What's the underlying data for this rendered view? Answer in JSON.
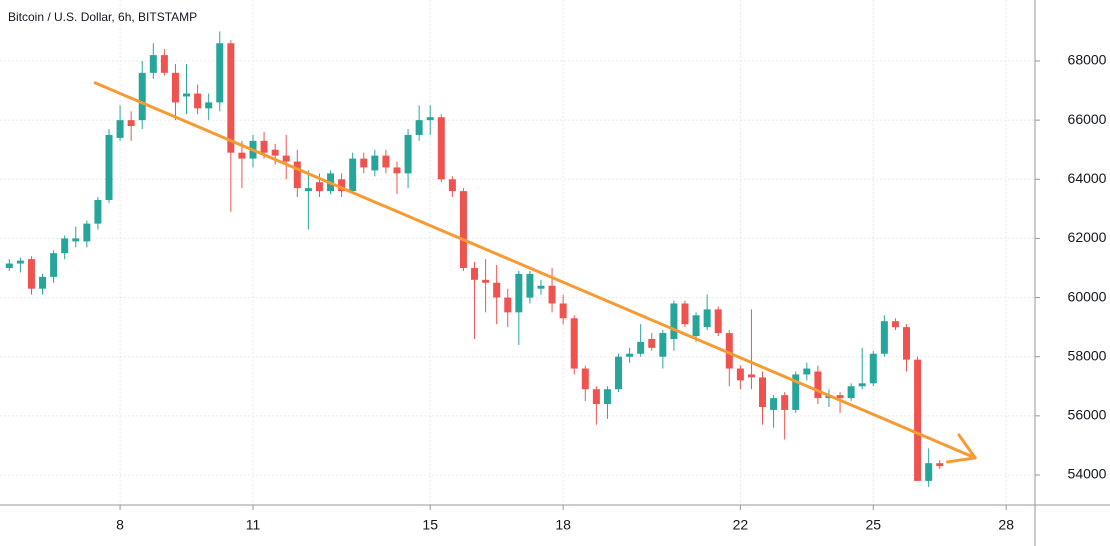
{
  "chart_data": {
    "type": "candlestick",
    "title": "Bitcoin / U.S. Dollar, 6h, BITSTAMP",
    "up_color": "#26a69a",
    "down_color": "#ef5350",
    "grid": true,
    "xlim": [
      5.29,
      28.65
    ],
    "xticks": [
      8,
      11,
      15,
      18,
      22,
      25,
      28
    ],
    "ylim": [
      52985,
      70063
    ],
    "yticks": [
      54000,
      56000,
      58000,
      60000,
      62000,
      64000,
      66000,
      68000
    ],
    "x": [
      5.5,
      5.75,
      6,
      6.25,
      6.5,
      6.75,
      7,
      7.25,
      7.5,
      7.75,
      8,
      8.25,
      8.5,
      8.75,
      9,
      9.25,
      9.5,
      9.75,
      10,
      10.25,
      10.5,
      10.75,
      11,
      11.25,
      11.5,
      11.75,
      12,
      12.25,
      12.5,
      12.75,
      13,
      13.25,
      13.5,
      13.75,
      14,
      14.25,
      14.5,
      14.75,
      15,
      15.25,
      15.5,
      15.75,
      16,
      16.25,
      16.5,
      16.75,
      17,
      17.25,
      17.5,
      17.75,
      18,
      18.25,
      18.5,
      18.75,
      19,
      19.25,
      19.5,
      19.75,
      20,
      20.25,
      20.5,
      20.75,
      21,
      21.25,
      21.5,
      21.75,
      22,
      22.25,
      22.5,
      22.75,
      23,
      23.25,
      23.5,
      23.75,
      24,
      24.25,
      24.5,
      24.75,
      25,
      25.25,
      25.5,
      25.75,
      26,
      26.25,
      26.5
    ],
    "open": [
      61000,
      61150,
      61300,
      60300,
      60700,
      61500,
      61900,
      61900,
      62500,
      63300,
      65400,
      66000,
      66000,
      67600,
      68200,
      67600,
      66800,
      66900,
      66400,
      66600,
      68600,
      64900,
      64700,
      65300,
      65000,
      64800,
      64600,
      63600,
      63900,
      63600,
      64000,
      63600,
      64700,
      64300,
      64800,
      64400,
      64200,
      65500,
      66000,
      66100,
      64000,
      63600,
      61000,
      60600,
      60500,
      60000,
      59500,
      60000,
      60300,
      60400,
      59800,
      59300,
      57600,
      56900,
      56400,
      56900,
      58000,
      58100,
      58600,
      58000,
      58600,
      59800,
      58700,
      59000,
      59600,
      58800,
      57600,
      57400,
      57300,
      56200,
      56700,
      56200,
      57400,
      57500,
      56600,
      56700,
      56600,
      57000,
      57100,
      58100,
      59200,
      59000,
      57900,
      53800,
      54400
    ],
    "high": [
      61300,
      61350,
      61400,
      60800,
      61600,
      62100,
      62400,
      62600,
      63400,
      65700,
      66500,
      66300,
      68000,
      68600,
      68400,
      67900,
      67900,
      67200,
      66900,
      69000,
      68700,
      65300,
      65500,
      65600,
      65200,
      65500,
      65000,
      64300,
      64200,
      64300,
      64200,
      64900,
      64900,
      65000,
      65000,
      64600,
      65700,
      66500,
      66500,
      66200,
      64100,
      63700,
      61200,
      61300,
      61100,
      60300,
      60900,
      60900,
      60600,
      61000,
      60100,
      59400,
      57700,
      57000,
      57000,
      58100,
      58300,
      59100,
      58800,
      58900,
      59900,
      59900,
      59500,
      60100,
      59700,
      58900,
      57700,
      59600,
      57500,
      56700,
      56800,
      57500,
      57800,
      57700,
      56900,
      56800,
      57100,
      58300,
      58200,
      59400,
      59300,
      59100,
      58000,
      54900,
      54500
    ],
    "low": [
      60900,
      60850,
      60100,
      60100,
      60500,
      61300,
      61700,
      61700,
      62300,
      63200,
      65300,
      65300,
      65700,
      67400,
      67500,
      66000,
      66200,
      66200,
      66000,
      66300,
      62900,
      63700,
      64400,
      64700,
      64500,
      64000,
      63400,
      62300,
      63400,
      63500,
      63400,
      63500,
      64200,
      64100,
      64200,
      63500,
      63700,
      65300,
      65500,
      63900,
      63400,
      60900,
      58600,
      59500,
      59100,
      59000,
      58400,
      59800,
      60100,
      59500,
      59100,
      57400,
      56500,
      55700,
      55900,
      56800,
      57800,
      58000,
      58200,
      57600,
      58200,
      59000,
      58500,
      58900,
      58700,
      57000,
      56900,
      56900,
      55700,
      55600,
      55200,
      56100,
      57200,
      56400,
      56300,
      56100,
      56500,
      56900,
      57000,
      58000,
      58900,
      57500,
      53800,
      53600,
      54200
    ],
    "close": [
      61150,
      61250,
      60300,
      60700,
      61500,
      62000,
      62000,
      62500,
      63300,
      65500,
      66000,
      65800,
      67600,
      68200,
      67600,
      66600,
      66900,
      66400,
      66600,
      68600,
      64900,
      64700,
      65300,
      64900,
      64800,
      64600,
      63700,
      63700,
      63600,
      64200,
      63600,
      64700,
      64400,
      64800,
      64400,
      64200,
      65500,
      66000,
      66100,
      64000,
      63600,
      61000,
      60600,
      60500,
      60000,
      59500,
      60800,
      60800,
      60400,
      59800,
      59300,
      57600,
      56900,
      56400,
      56900,
      58000,
      58100,
      58500,
      58300,
      58800,
      59800,
      59100,
      59400,
      59600,
      58800,
      57600,
      57200,
      57300,
      56300,
      56600,
      56200,
      57400,
      57600,
      56600,
      56700,
      56600,
      57000,
      57100,
      58100,
      59200,
      59000,
      57900,
      53800,
      54400,
      54300
    ],
    "trendline": {
      "color": "#f59b32",
      "x": [
        7.44,
        27.3
      ],
      "y": [
        67260,
        54580
      ]
    }
  }
}
